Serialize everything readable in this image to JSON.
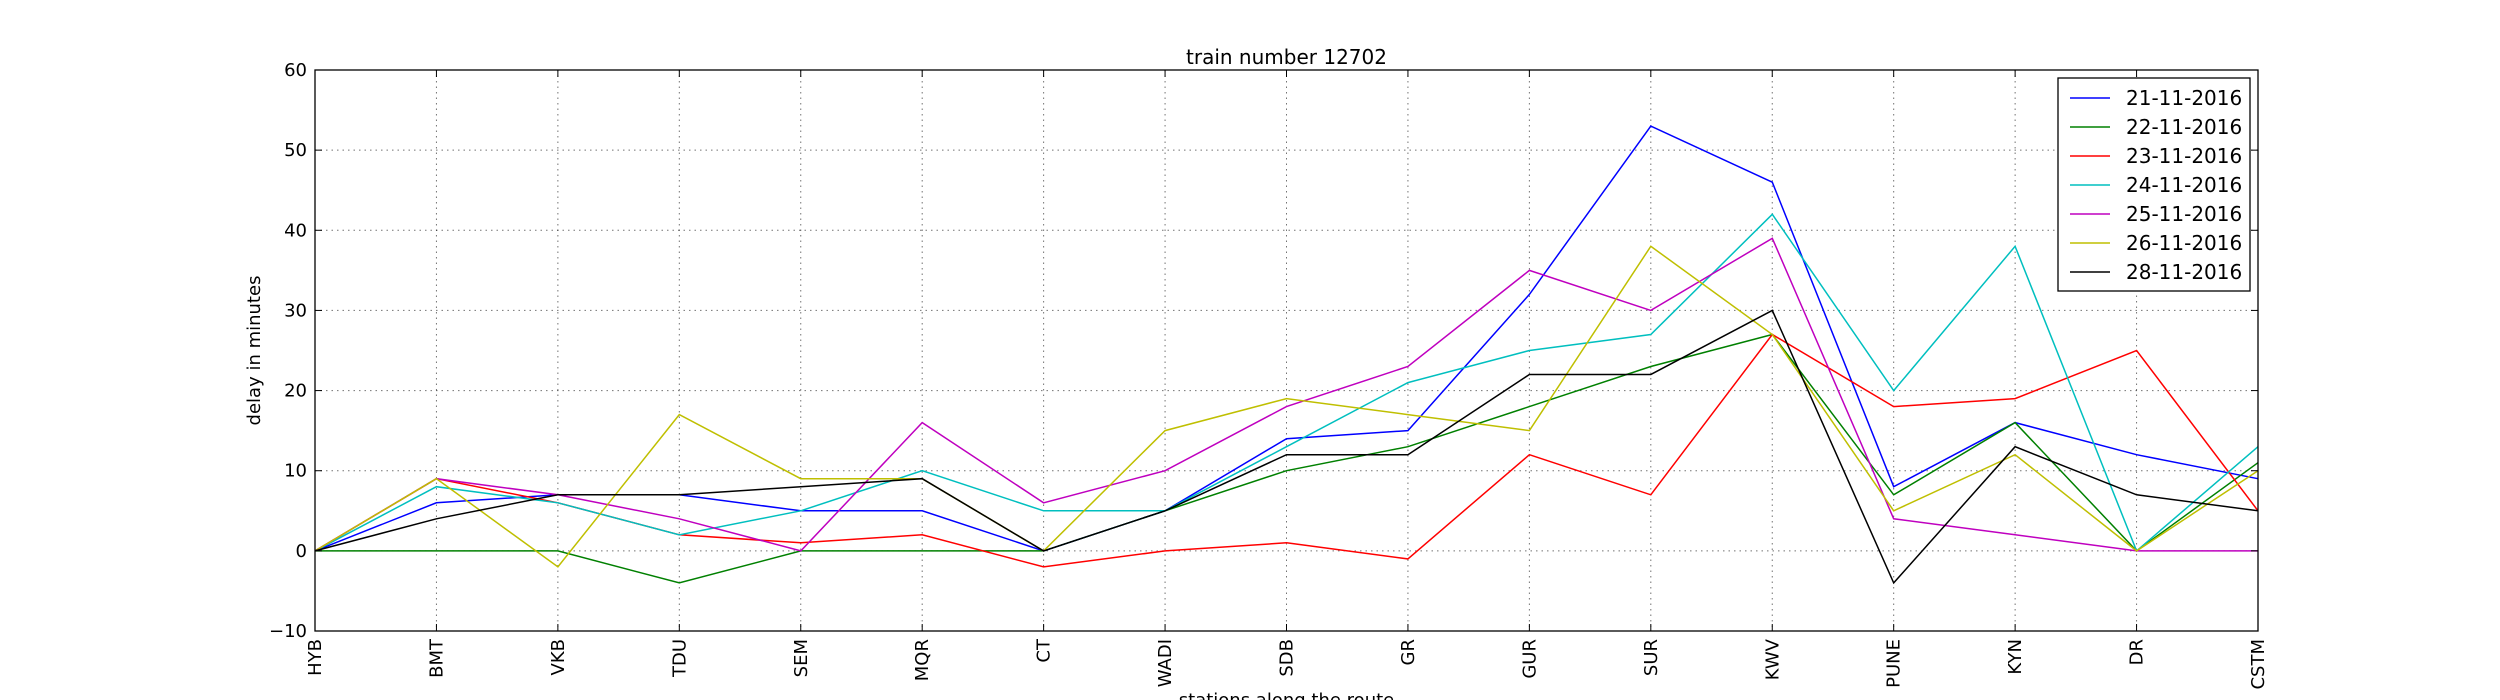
{
  "chart_data": {
    "type": "line",
    "title": "train number 12702",
    "xlabel": "stations along the route",
    "ylabel": "delay in minutes",
    "categories": [
      "HYB",
      "BMT",
      "VKB",
      "TDU",
      "SEM",
      "MQR",
      "CT",
      "WADI",
      "SDB",
      "GR",
      "GUR",
      "SUR",
      "KWV",
      "PUNE",
      "KYN",
      "DR",
      "CSTM"
    ],
    "ylim": [
      -10,
      60
    ],
    "yticks": [
      -10,
      0,
      10,
      20,
      30,
      40,
      50,
      60
    ],
    "grid": true,
    "legend_position": "top-right",
    "series": [
      {
        "name": "21-11-2016",
        "color": "#0000ff",
        "values": [
          0,
          6,
          7,
          7,
          5,
          5,
          0,
          5,
          14,
          15,
          32,
          53,
          46,
          8,
          16,
          12,
          9
        ]
      },
      {
        "name": "22-11-2016",
        "color": "#008000",
        "values": [
          0,
          0,
          0,
          -4,
          0,
          0,
          0,
          5,
          10,
          13,
          18,
          23,
          27,
          7,
          16,
          0,
          11
        ]
      },
      {
        "name": "23-11-2016",
        "color": "#ff0000",
        "values": [
          0,
          9,
          6,
          2,
          1,
          2,
          -2,
          0,
          1,
          -1,
          12,
          7,
          27,
          18,
          19,
          25,
          5
        ]
      },
      {
        "name": "24-11-2016",
        "color": "#00bfbf",
        "values": [
          0,
          8,
          6,
          2,
          5,
          10,
          5,
          5,
          13,
          21,
          25,
          27,
          42,
          20,
          38,
          0,
          13
        ]
      },
      {
        "name": "25-11-2016",
        "color": "#bf00bf",
        "values": [
          0,
          9,
          7,
          4,
          0,
          16,
          6,
          10,
          18,
          23,
          35,
          30,
          39,
          4,
          2,
          0,
          0
        ]
      },
      {
        "name": "26-11-2016",
        "color": "#bfbf00",
        "values": [
          0,
          9,
          -2,
          17,
          9,
          9,
          0,
          15,
          19,
          17,
          15,
          38,
          27,
          5,
          12,
          0,
          10
        ]
      },
      {
        "name": "28-11-2016",
        "color": "#000000",
        "values": [
          0,
          4,
          7,
          7,
          8,
          9,
          0,
          5,
          12,
          12,
          22,
          22,
          30,
          -4,
          13,
          7,
          5
        ]
      }
    ]
  }
}
